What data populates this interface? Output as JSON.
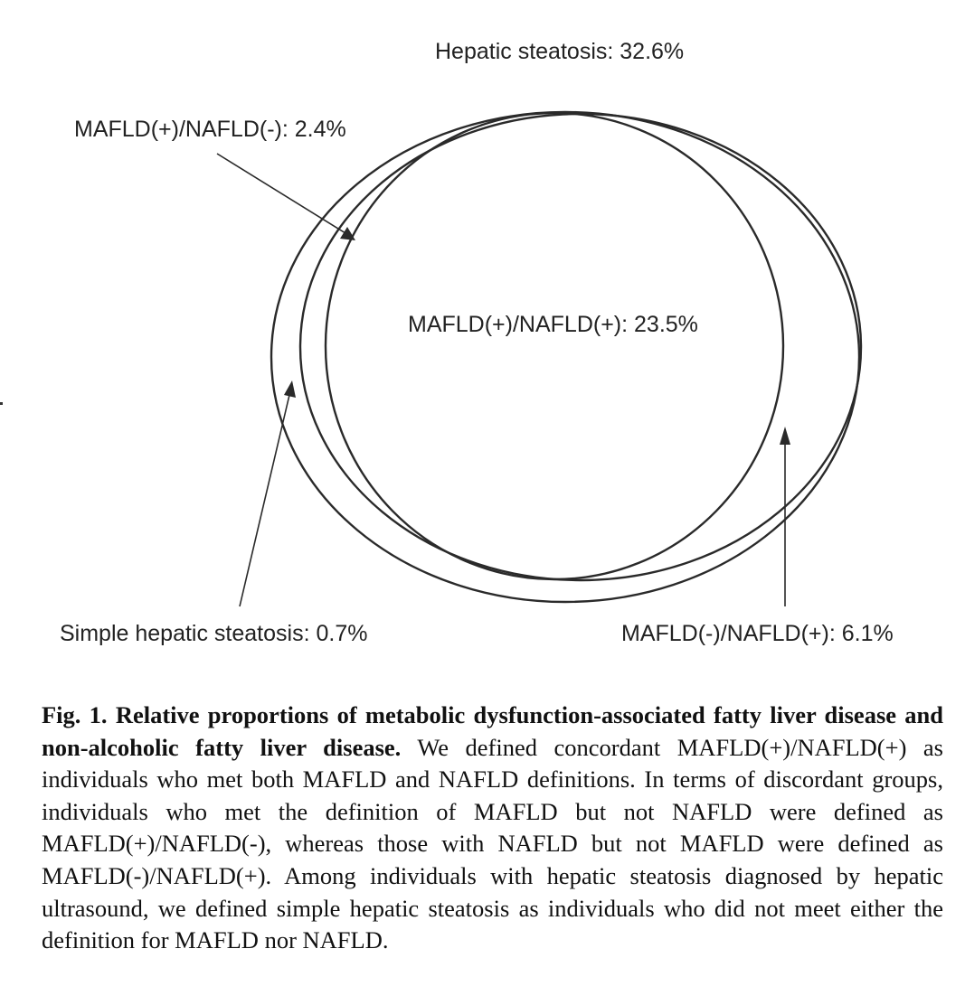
{
  "diagram": {
    "labels": {
      "hepatic_steatosis": "Hepatic steatosis: 32.6%",
      "mafld_pos_nafld_neg": "MAFLD(+)/NAFLD(-): 2.4%",
      "mafld_pos_nafld_pos": "MAFLD(+)/NAFLD(+): 23.5%",
      "simple_hepatic_steatosis": "Simple hepatic steatosis: 0.7%",
      "mafld_neg_nafld_pos": "MAFLD(-)/NAFLD(+): 6.1%"
    },
    "proportions_percent": {
      "hepatic_steatosis": 32.6,
      "mafld_pos_nafld_pos": 23.5,
      "mafld_neg_nafld_pos": 6.1,
      "mafld_pos_nafld_neg": 2.4,
      "simple_hepatic_steatosis": 0.7
    }
  },
  "caption": {
    "title": "Fig. 1. Relative proportions of metabolic dysfunction-associated fatty liver disease and non-alcoholic fatty liver disease.",
    "body": "We defined concordant MAFLD(+)/NAFLD(+) as individuals who met both MAFLD and NAFLD defini­tions. In terms of discordant groups, individuals who met the definition of MAFLD but not NAFLD were defined as MAFLD(+)/NAFLD(-), whereas those with NAFLD but not MAFLD were defined as MAFLD(-)/NAFLD(+). Among in­dividuals with hepatic steatosis diagnosed by hepatic ultrasound, we defined simple hepatic steatosis as individuals who did not meet either the definition for MAFLD nor NAFLD."
  }
}
